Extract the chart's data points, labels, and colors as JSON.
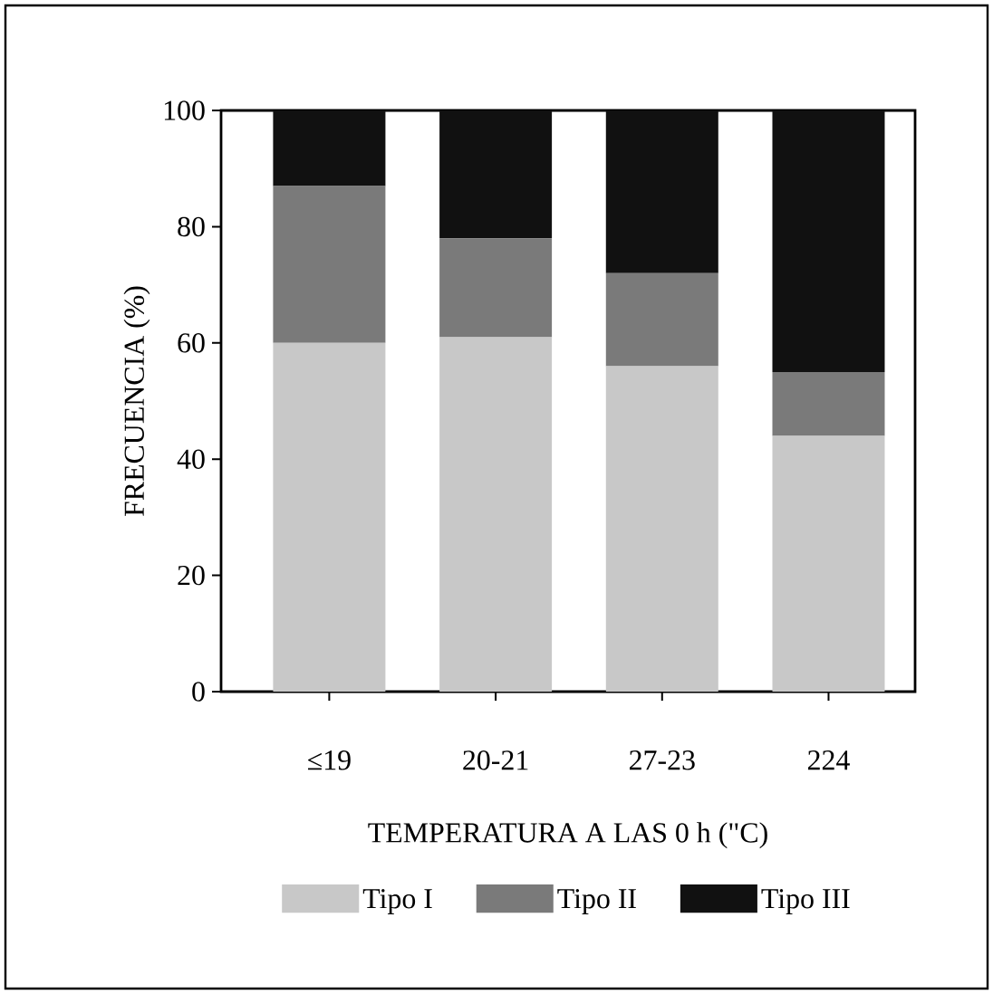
{
  "chart_data": {
    "type": "bar",
    "stacked": true,
    "xlabel": "TEMPERATURA A LAS 0 h (\"C)",
    "ylabel": "FRECUENCIA (%)",
    "categories": [
      "≤19",
      "20-21",
      "27-23",
      "224"
    ],
    "series": [
      {
        "name": "Tipo I",
        "color": "#c8c8c8",
        "values": [
          60,
          61,
          56,
          44
        ]
      },
      {
        "name": "Tipo II",
        "color": "#7a7a7a",
        "values": [
          27,
          17,
          16,
          11
        ]
      },
      {
        "name": "Tipo III",
        "color": "#111111",
        "values": [
          13,
          22,
          28,
          45
        ]
      }
    ],
    "ylim": [
      0,
      100
    ],
    "yticks": [
      0,
      20,
      40,
      60,
      80,
      100
    ],
    "legend": "bottom",
    "grid": false
  }
}
